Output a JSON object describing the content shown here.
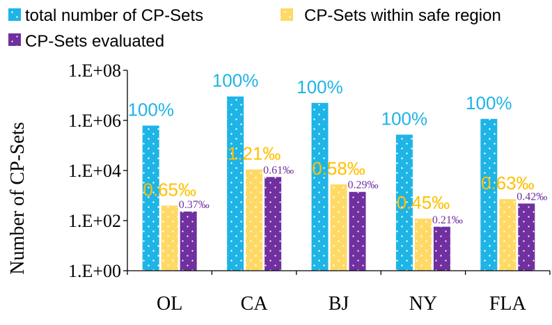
{
  "chart_data": {
    "type": "bar",
    "title": "",
    "xlabel": "",
    "ylabel": "Number of CP-Sets",
    "yscale": "log",
    "ylim": [
      1,
      100000000
    ],
    "yticks": [
      1,
      100,
      10000,
      1000000,
      100000000
    ],
    "ytick_labels": [
      "1.E+00",
      "1.E+02",
      "1.E+04",
      "1.E+06",
      "1.E+08"
    ],
    "categories": [
      "OL",
      "CA",
      "BJ",
      "NY",
      "FLA"
    ],
    "legend_position": "top",
    "series": [
      {
        "name": "total number of CP-Sets",
        "color": "#1EB4E6",
        "values": [
          620000,
          9000000,
          5000000,
          270000,
          1150000
        ],
        "labels": [
          "100%",
          "100%",
          "100%",
          "100%",
          "100%"
        ]
      },
      {
        "name": "CP-Sets within safe region",
        "color": "#FFD966",
        "values": [
          400,
          11000,
          2800,
          120,
          720
        ],
        "labels": [
          "0.65‰",
          "1.21‰",
          "0.58‰",
          "0.45‰",
          "0.63‰"
        ]
      },
      {
        "name": "CP-Sets evaluated",
        "color": "#7030A0",
        "values": [
          230,
          5500,
          1400,
          57,
          480
        ],
        "labels": [
          "0.37‰",
          "0.61‰",
          "0.29‰",
          "0.21‰",
          "0.42‰"
        ]
      }
    ]
  }
}
